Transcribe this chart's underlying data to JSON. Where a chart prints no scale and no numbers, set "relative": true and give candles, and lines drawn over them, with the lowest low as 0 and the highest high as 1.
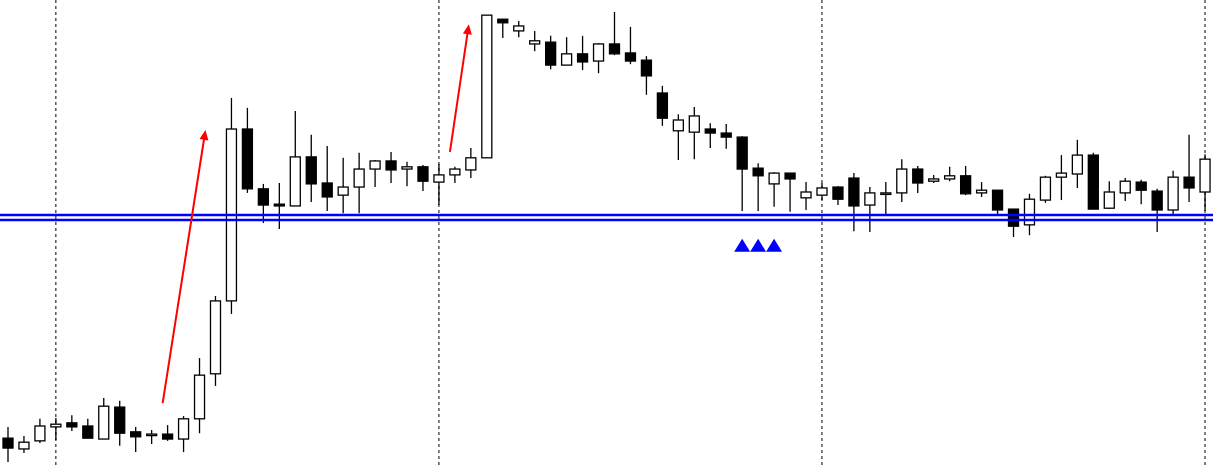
{
  "chart_data": {
    "type": "candlestick",
    "relative": true,
    "grid": "x",
    "categories": [
      null,
      null,
      null,
      null,
      null,
      null,
      null,
      null,
      null,
      null,
      null,
      null,
      null,
      null,
      null,
      null,
      null,
      null,
      null,
      null,
      null,
      null,
      null,
      null,
      null,
      null,
      null,
      null,
      null,
      null,
      null,
      null,
      null,
      null,
      null,
      null,
      null,
      null,
      null,
      null,
      null,
      null,
      null,
      null,
      null,
      null,
      null,
      null,
      null,
      null,
      null,
      null,
      null,
      null,
      null,
      null,
      null,
      null,
      null,
      null,
      null,
      null,
      null,
      null,
      null,
      null,
      null,
      null,
      null,
      null,
      null,
      null,
      null,
      null,
      null,
      null
    ],
    "ohlc": [
      [
        0.053,
        0.078,
        0,
        0.031
      ],
      [
        0.029,
        0.058,
        0.02,
        0.044
      ],
      [
        0.047,
        0.096,
        0.042,
        0.08
      ],
      [
        0.078,
        0.098,
        0.049,
        0.084
      ],
      [
        0.087,
        0.104,
        0.069,
        0.078
      ],
      [
        0.08,
        0.096,
        0.053,
        0.053
      ],
      [
        0.051,
        0.142,
        0.051,
        0.124
      ],
      [
        0.122,
        0.136,
        0.036,
        0.064
      ],
      [
        0.067,
        0.078,
        0.022,
        0.056
      ],
      [
        0.062,
        0.071,
        0.04,
        0.062
      ],
      [
        0.062,
        0.082,
        0.047,
        0.051
      ],
      [
        0.051,
        0.102,
        0.022,
        0.096
      ],
      [
        0.096,
        0.231,
        0.064,
        0.193
      ],
      [
        0.196,
        0.369,
        0.169,
        0.358
      ],
      [
        0.358,
        0.809,
        0.329,
        0.74
      ],
      [
        0.74,
        0.787,
        0.598,
        0.607
      ],
      [
        0.607,
        0.618,
        0.531,
        0.571
      ],
      [
        0.573,
        0.62,
        0.518,
        0.569
      ],
      [
        0.569,
        0.78,
        0.569,
        0.678
      ],
      [
        0.678,
        0.727,
        0.578,
        0.618
      ],
      [
        0.62,
        0.702,
        0.558,
        0.589
      ],
      [
        0.593,
        0.676,
        0.553,
        0.611
      ],
      [
        0.611,
        0.687,
        0.553,
        0.651
      ],
      [
        0.651,
        0.671,
        0.611,
        0.669
      ],
      [
        0.669,
        0.689,
        0.62,
        0.649
      ],
      [
        0.651,
        0.667,
        0.613,
        0.656
      ],
      [
        0.656,
        0.66,
        0.602,
        0.624
      ],
      [
        0.622,
        0.662,
        0.571,
        0.638
      ],
      [
        0.638,
        0.656,
        0.62,
        0.651
      ],
      [
        0.649,
        0.698,
        0.631,
        0.676
      ],
      [
        0.676,
        0.993,
        0.676,
        0.993
      ],
      [
        0.984,
        0.984,
        0.942,
        0.976
      ],
      [
        0.958,
        0.98,
        0.944,
        0.969
      ],
      [
        0.929,
        0.958,
        0.913,
        0.936
      ],
      [
        0.933,
        0.947,
        0.873,
        0.882
      ],
      [
        0.882,
        0.944,
        0.882,
        0.907
      ],
      [
        0.907,
        0.947,
        0.871,
        0.889
      ],
      [
        0.891,
        0.931,
        0.864,
        0.929
      ],
      [
        0.929,
        1.0,
        0.904,
        0.907
      ],
      [
        0.909,
        0.967,
        0.884,
        0.891
      ],
      [
        0.893,
        0.902,
        0.816,
        0.858
      ],
      [
        0.82,
        0.836,
        0.747,
        0.764
      ],
      [
        0.736,
        0.773,
        0.671,
        0.76
      ],
      [
        0.733,
        0.789,
        0.673,
        0.769
      ],
      [
        0.74,
        0.753,
        0.698,
        0.731
      ],
      [
        0.731,
        0.751,
        0.696,
        0.722
      ],
      [
        0.722,
        0.724,
        0.558,
        0.651
      ],
      [
        0.653,
        0.664,
        0.558,
        0.636
      ],
      [
        0.618,
        0.644,
        0.567,
        0.642
      ],
      [
        0.642,
        0.642,
        0.556,
        0.629
      ],
      [
        0.587,
        0.622,
        0.56,
        0.6
      ],
      [
        0.593,
        0.62,
        0.582,
        0.609
      ],
      [
        0.611,
        0.613,
        0.571,
        0.584
      ],
      [
        0.631,
        0.642,
        0.513,
        0.569
      ],
      [
        0.571,
        0.611,
        0.511,
        0.598
      ],
      [
        0.598,
        0.622,
        0.549,
        0.598
      ],
      [
        0.598,
        0.673,
        0.578,
        0.651
      ],
      [
        0.651,
        0.658,
        0.598,
        0.62
      ],
      [
        0.624,
        0.638,
        0.62,
        0.629
      ],
      [
        0.629,
        0.656,
        0.624,
        0.636
      ],
      [
        0.636,
        0.658,
        0.593,
        0.596
      ],
      [
        0.598,
        0.622,
        0.589,
        0.604
      ],
      [
        0.604,
        0.604,
        0.549,
        0.56
      ],
      [
        0.562,
        0.562,
        0.5,
        0.524
      ],
      [
        0.527,
        0.596,
        0.504,
        0.584
      ],
      [
        0.582,
        0.636,
        0.576,
        0.633
      ],
      [
        0.633,
        0.682,
        0.582,
        0.642
      ],
      [
        0.64,
        0.716,
        0.609,
        0.682
      ],
      [
        0.682,
        0.687,
        0.562,
        0.562
      ],
      [
        0.564,
        0.624,
        0.562,
        0.6
      ],
      [
        0.598,
        0.631,
        0.58,
        0.624
      ],
      [
        0.622,
        0.627,
        0.573,
        0.604
      ],
      [
        0.602,
        0.607,
        0.511,
        0.56
      ],
      [
        0.56,
        0.647,
        0.549,
        0.633
      ],
      [
        0.633,
        0.727,
        0.578,
        0.609
      ],
      [
        0.6,
        0.684,
        0.558,
        0.673
      ]
    ],
    "ref_lines": [
      {
        "axis": "y",
        "value": 0.549,
        "color": "#0000ff"
      },
      {
        "axis": "y",
        "value": 0.538,
        "color": "#0000ff"
      }
    ]
  }
}
